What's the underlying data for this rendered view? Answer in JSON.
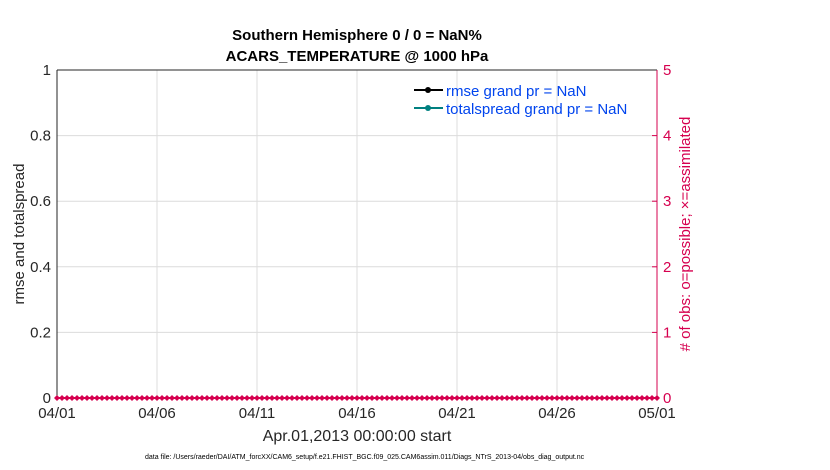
{
  "chart_data": {
    "type": "line",
    "title": [
      "Southern Hemisphere 0 / 0 = NaN%",
      "ACARS_TEMPERATURE @ 1000 hPa"
    ],
    "xlabel": "Apr.01,2013 00:00:00 start",
    "ylabel": "rmse and totalspread",
    "ylabel_right": "# of obs: o=possible; ×=assimilated",
    "x_ticks": [
      "04/01",
      "04/06",
      "04/11",
      "04/16",
      "04/21",
      "04/26",
      "05/01"
    ],
    "xlim": [
      "04/01",
      "05/01"
    ],
    "ylim": [
      0,
      1
    ],
    "y_ticks": [
      "0",
      "0.2",
      "0.4",
      "0.6",
      "0.8",
      "1"
    ],
    "ylim_right": [
      0,
      5
    ],
    "y_ticks_right": [
      "0",
      "1",
      "2",
      "3",
      "4",
      "5"
    ],
    "grid": true,
    "legend_placement": "top-right",
    "series": [
      {
        "name": "rmse grand pr = NaN",
        "color": "#000000",
        "values": []
      },
      {
        "name": "totalspread grand pr = NaN",
        "color": "#008080",
        "values": []
      },
      {
        "axis": "right",
        "color": "#d6004f",
        "marker_interval_hours": 6,
        "values_constant": 0
      }
    ],
    "footer": "data file: /Users/raeder/DAI/ATM_forcXX/CAM6_setup/f.e21.FHIST_BGC.f09_025.CAM6assim.011/Diags_NTrS_2013-04/obs_diag_output.nc"
  },
  "colors": {
    "legend_text": "#0044ee",
    "right_axis": "#d6004f"
  }
}
